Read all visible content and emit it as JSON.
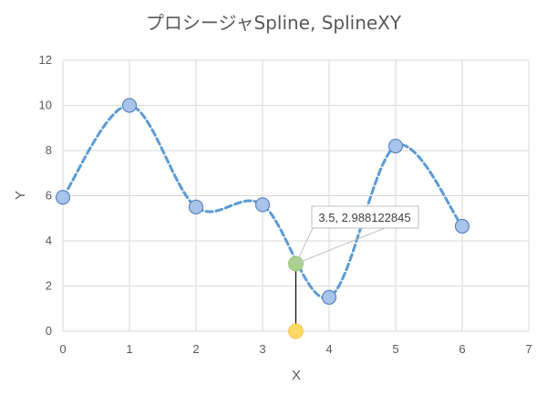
{
  "chart_data": {
    "type": "scatter",
    "title": "プロシージャSpline, SplineXY",
    "xlabel": "X",
    "ylabel": "Y",
    "xlim": [
      0,
      7
    ],
    "ylim": [
      0,
      12
    ],
    "x_ticks": [
      "0",
      "1",
      "2",
      "3",
      "4",
      "5",
      "6",
      "7"
    ],
    "y_ticks": [
      "0",
      "2",
      "4",
      "6",
      "8",
      "10",
      "12"
    ],
    "grid": true,
    "series": [
      {
        "points": [
          {
            "x": 0,
            "y": 5.93
          },
          {
            "x": 1,
            "y": 10.0
          },
          {
            "x": 2,
            "y": 5.5
          },
          {
            "x": 3,
            "y": 5.6
          },
          {
            "x": 4,
            "y": 1.5
          },
          {
            "x": 5,
            "y": 8.2
          },
          {
            "x": 6,
            "y": 4.65
          }
        ],
        "color": "#5b9bd5",
        "line_style": "dashed",
        "smooth": true
      }
    ],
    "highlight": {
      "interpolated_point": {
        "x": 3.5,
        "y": 2.988122845,
        "color": "#a9d18e"
      },
      "base_point": {
        "x": 3.5,
        "y": 0,
        "color": "#ffd966"
      },
      "label": "3.5, 2.988122845"
    },
    "highlighted_marker_index": 3
  }
}
